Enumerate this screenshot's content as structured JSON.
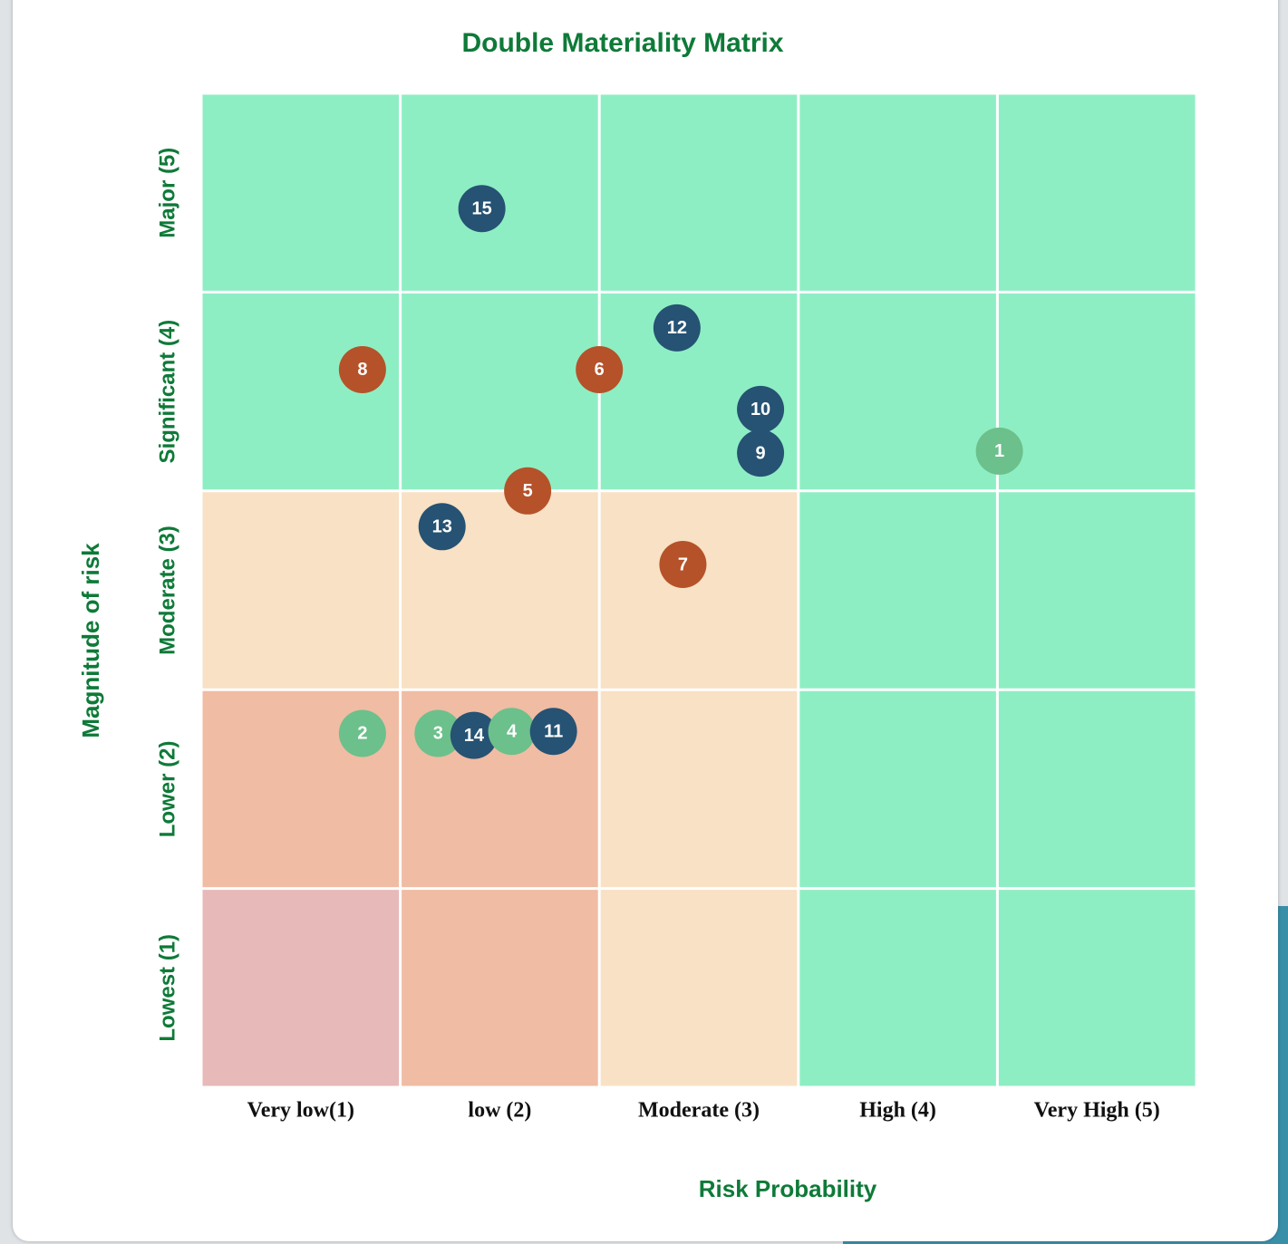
{
  "chart_data": {
    "type": "scatter",
    "title": "Double Materiality Matrix",
    "x_label": "Risk Probability",
    "y_label": "Magnitude of risk",
    "categories": [
      "Very low(1)",
      "low  (2)",
      "Moderate  (3)",
      "High  (4)",
      "Very High (5)"
    ],
    "y_categories": [
      "Lowest (1)",
      "Lower (2)",
      "Moderate (3)",
      "Significant (4)",
      "Major (5)"
    ],
    "xlim": [
      0,
      5
    ],
    "ylim": [
      0,
      5
    ],
    "xticks": [
      0,
      1,
      2,
      3,
      4,
      5
    ],
    "yticks": [
      0,
      1,
      2,
      3,
      4,
      5
    ],
    "cell_colors": [
      [
        "#e8b9b9",
        "#f0bca3",
        "#f8e1c4",
        "#8eeec3",
        "#8eeec3"
      ],
      [
        "#f0bca3",
        "#f0bca3",
        "#f8e1c4",
        "#8eeec3",
        "#8eeec3"
      ],
      [
        "#f8e1c4",
        "#f8e1c4",
        "#f8e1c4",
        "#8eeec3",
        "#8eeec3"
      ],
      [
        "#8eeec3",
        "#8eeec3",
        "#8eeec3",
        "#8eeec3",
        "#8eeec3"
      ],
      [
        "#8eeec3",
        "#8eeec3",
        "#8eeec3",
        "#8eeec3",
        "#8eeec3"
      ]
    ],
    "points": [
      {
        "label": "1",
        "x": 4.01,
        "y": 3.2,
        "color": "#6cc08b"
      },
      {
        "label": "2",
        "x": 0.81,
        "y": 1.78,
        "color": "#6cc08b"
      },
      {
        "label": "3",
        "x": 1.19,
        "y": 1.78,
        "color": "#6cc08b"
      },
      {
        "label": "14",
        "x": 1.37,
        "y": 1.77,
        "color": "#265273"
      },
      {
        "label": "4",
        "x": 1.56,
        "y": 1.79,
        "color": "#6cc08b"
      },
      {
        "label": "11",
        "x": 1.77,
        "y": 1.79,
        "color": "#265273"
      },
      {
        "label": "5",
        "x": 1.64,
        "y": 3.0,
        "color": "#b5522a"
      },
      {
        "label": "6",
        "x": 2.0,
        "y": 3.61,
        "color": "#b5522a"
      },
      {
        "label": "7",
        "x": 2.42,
        "y": 2.63,
        "color": "#b5522a"
      },
      {
        "label": "8",
        "x": 0.81,
        "y": 3.61,
        "color": "#b5522a"
      },
      {
        "label": "9",
        "x": 2.81,
        "y": 3.19,
        "color": "#265273"
      },
      {
        "label": "10",
        "x": 2.81,
        "y": 3.41,
        "color": "#265273"
      },
      {
        "label": "12",
        "x": 2.39,
        "y": 3.82,
        "color": "#265273"
      },
      {
        "label": "13",
        "x": 1.21,
        "y": 2.82,
        "color": "#265273"
      },
      {
        "label": "15",
        "x": 1.41,
        "y": 4.42,
        "color": "#265273"
      }
    ]
  }
}
